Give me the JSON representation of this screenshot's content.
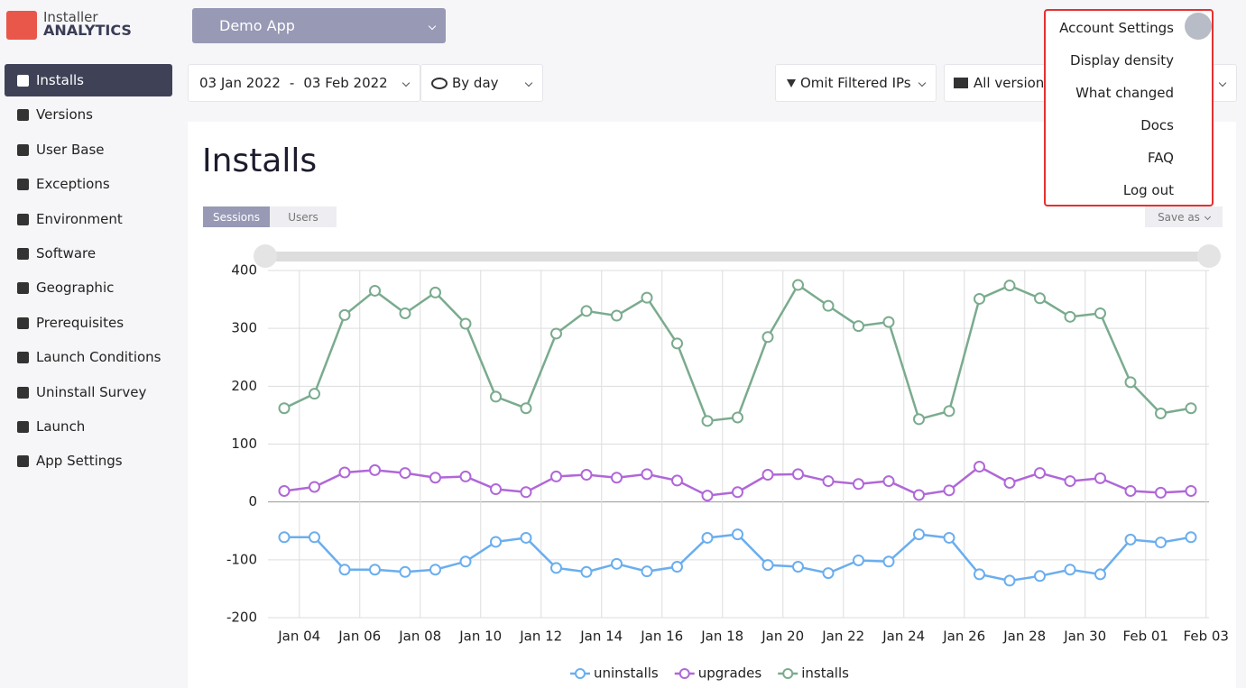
{
  "logo": {
    "line1": "Installer",
    "line2": "ANALYTICS"
  },
  "app_selector": "Demo App",
  "sidebar": [
    "Installs",
    "Versions",
    "User Base",
    "Exceptions",
    "Environment",
    "Software",
    "Geographic",
    "Prerequisites",
    "Launch Conditions",
    "Uninstall Survey",
    "Launch",
    "App Settings"
  ],
  "filters": {
    "date_from": "03 Jan 2022",
    "date_sep": "-",
    "date_to": "03 Feb 2022",
    "granularity": "By day",
    "ip_filter": "Omit Filtered IPs",
    "versions": "All versions"
  },
  "account_menu": [
    "Account Settings",
    "Display density",
    "What changed",
    "Docs",
    "FAQ",
    "Log out"
  ],
  "page_title": "Installs",
  "tabs": [
    "Sessions",
    "Users"
  ],
  "save_as": "Save as",
  "chart_data": {
    "type": "line",
    "xlim": [
      -0.5,
      30.6
    ],
    "xticks": [
      {
        "value": 0.5,
        "label": "Jan 04"
      },
      {
        "value": 2.5,
        "label": "Jan 06"
      },
      {
        "value": 4.5,
        "label": "Jan 08"
      },
      {
        "value": 6.5,
        "label": "Jan 10"
      },
      {
        "value": 8.5,
        "label": "Jan 12"
      },
      {
        "value": 10.5,
        "label": "Jan 14"
      },
      {
        "value": 12.5,
        "label": "Jan 16"
      },
      {
        "value": 14.5,
        "label": "Jan 18"
      },
      {
        "value": 16.5,
        "label": "Jan 20"
      },
      {
        "value": 18.5,
        "label": "Jan 22"
      },
      {
        "value": 20.5,
        "label": "Jan 24"
      },
      {
        "value": 22.5,
        "label": "Jan 26"
      },
      {
        "value": 24.5,
        "label": "Jan 28"
      },
      {
        "value": 26.5,
        "label": "Jan 30"
      },
      {
        "value": 28.5,
        "label": "Feb 01"
      },
      {
        "value": 30.5,
        "label": "Feb 03"
      }
    ],
    "ylim": [
      -200,
      400
    ],
    "yticks": [
      -200,
      -100,
      0,
      100,
      200,
      300,
      400
    ],
    "grid": true,
    "series": [
      {
        "name": "uninstalls",
        "color": "#6aaeef",
        "values": [
          -61,
          -61,
          -117,
          -117,
          -121,
          -117,
          -103,
          -69,
          -62,
          -114,
          -121,
          -107,
          -120,
          -112,
          -62,
          -56,
          -109,
          -112,
          -123,
          -101,
          -103,
          -56,
          -62,
          -125,
          -136,
          -128,
          -117,
          -125,
          -65,
          -70,
          -61
        ]
      },
      {
        "name": "upgrades",
        "color": "#b067d8",
        "values": [
          19,
          26,
          51,
          55,
          50,
          42,
          44,
          22,
          17,
          44,
          47,
          42,
          48,
          37,
          11,
          17,
          47,
          48,
          36,
          31,
          36,
          12,
          20,
          61,
          33,
          50,
          36,
          41,
          19,
          16,
          19
        ]
      },
      {
        "name": "installs",
        "color": "#7aab8e",
        "values": [
          162,
          187,
          323,
          365,
          326,
          362,
          308,
          182,
          162,
          291,
          330,
          322,
          353,
          274,
          140,
          146,
          285,
          375,
          339,
          304,
          311,
          143,
          157,
          351,
          374,
          352,
          320,
          326,
          207,
          153,
          162
        ]
      }
    ]
  }
}
